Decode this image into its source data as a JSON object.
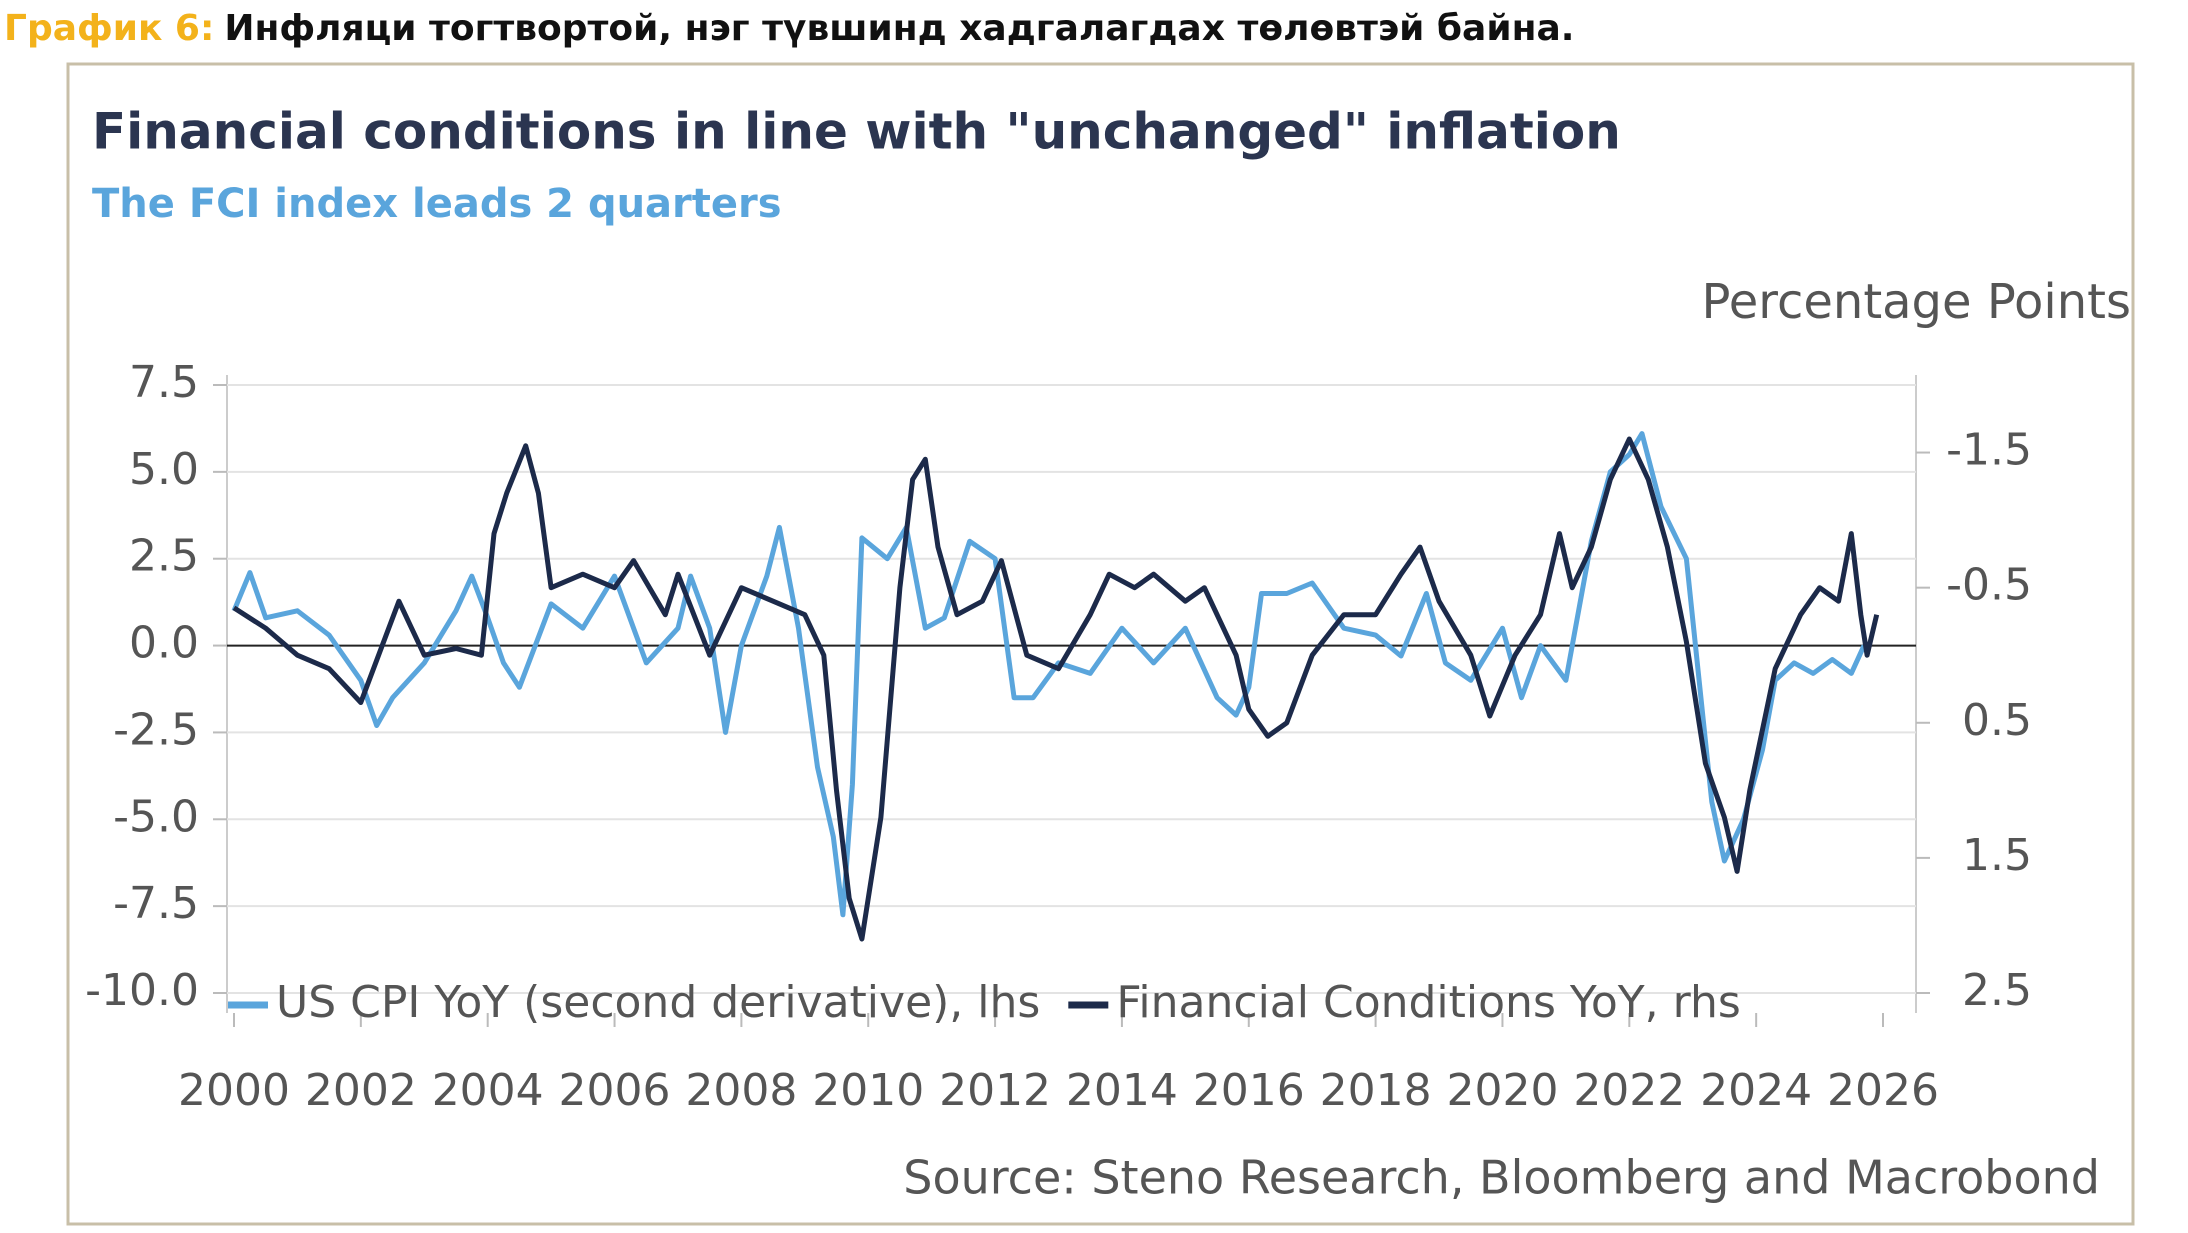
{
  "header": {
    "label": "График 6:",
    "text": "Инфляци тогтвортой, нэг түвшинд хадгалагдах төлөвтэй байна."
  },
  "chart_data": {
    "type": "line",
    "title": "Financial conditions in line with \"unchanged\" inflation",
    "subtitle": "The FCI index leads 2 quarters",
    "y2_label": "Percentage Points",
    "source": "Source: Steno Research, Bloomberg and Macrobond",
    "xlim": [
      2000,
      2026
    ],
    "xticks": [
      2000,
      2002,
      2004,
      2006,
      2008,
      2010,
      2012,
      2014,
      2016,
      2018,
      2020,
      2022,
      2024,
      2026
    ],
    "ylim": [
      -10,
      7.5
    ],
    "yticks": [
      7.5,
      {
        "value": 5,
        "label": "5.0"
      },
      2.5,
      {
        "value": 0,
        "label": "0.0"
      },
      -2.5,
      {
        "value": -5,
        "label": "-5.0"
      },
      -7.5,
      {
        "value": -10,
        "label": "-10.0"
      }
    ],
    "y2lim": [
      -2.0,
      2.5
    ],
    "y2_inverted": true,
    "y2ticks": [
      -1.5,
      -0.5,
      0.5,
      1.5,
      2.5
    ],
    "grid": true,
    "legend": "bottom-left",
    "series": [
      {
        "name": "US CPI YoY (second derivative), lhs",
        "color": "#5aa5dc",
        "x": [
          2000,
          2000.25,
          2000.5,
          2001,
          2001.5,
          2002,
          2002.25,
          2002.5,
          2003,
          2003.5,
          2003.75,
          2004,
          2004.25,
          2004.5,
          2005,
          2005.5,
          2006,
          2006.5,
          2007,
          2007.2,
          2007.5,
          2007.75,
          2008,
          2008.4,
          2008.6,
          2008.9,
          2009.2,
          2009.45,
          2009.6,
          2009.75,
          2009.9,
          2010.3,
          2010.6,
          2010.9,
          2011.2,
          2011.6,
          2012,
          2012.3,
          2012.6,
          2013,
          2013.5,
          2014,
          2014.5,
          2015,
          2015.5,
          2015.8,
          2016,
          2016.2,
          2016.6,
          2017,
          2017.5,
          2018,
          2018.4,
          2018.8,
          2019.1,
          2019.5,
          2020,
          2020.3,
          2020.6,
          2021,
          2021.4,
          2021.7,
          2022,
          2022.2,
          2022.5,
          2022.9,
          2023.1,
          2023.3,
          2023.5,
          2023.8,
          2024.1,
          2024.3,
          2024.6,
          2024.9,
          2025.2,
          2025.5,
          2025.7
        ],
        "values": [
          1.0,
          2.1,
          0.8,
          1.0,
          0.3,
          -1.0,
          -2.3,
          -1.5,
          -0.5,
          1.0,
          2.0,
          0.8,
          -0.5,
          -1.2,
          1.2,
          0.5,
          2.0,
          -0.5,
          0.5,
          2.0,
          0.5,
          -2.5,
          0.0,
          2.0,
          3.4,
          0.5,
          -3.5,
          -5.5,
          -7.75,
          -4.0,
          3.1,
          2.5,
          3.4,
          0.5,
          0.8,
          3.0,
          2.5,
          -1.5,
          -1.5,
          -0.5,
          -0.8,
          0.5,
          -0.5,
          0.5,
          -1.5,
          -2.0,
          -1.2,
          1.5,
          1.5,
          1.8,
          0.5,
          0.3,
          -0.3,
          1.5,
          -0.5,
          -1.0,
          0.5,
          -1.5,
          0.0,
          -1.0,
          3.0,
          5.0,
          5.5,
          6.1,
          4.0,
          2.5,
          -1.0,
          -4.5,
          -6.2,
          -5.0,
          -3.0,
          -1.0,
          -0.5,
          -0.8,
          -0.4,
          -0.8,
          0.0
        ]
      },
      {
        "name": "Financial Conditions YoY, rhs",
        "color": "#1c2a4a",
        "axis": "y2",
        "x": [
          2000,
          2000.5,
          2001,
          2001.5,
          2002,
          2002.6,
          2003,
          2003.5,
          2003.9,
          2004.1,
          2004.3,
          2004.6,
          2004.8,
          2005,
          2005.5,
          2006,
          2006.3,
          2006.8,
          2007,
          2007.5,
          2008,
          2008.5,
          2009,
          2009.3,
          2009.5,
          2009.7,
          2009.9,
          2010.2,
          2010.5,
          2010.7,
          2010.9,
          2011.1,
          2011.4,
          2011.8,
          2012.1,
          2012.5,
          2013,
          2013.5,
          2013.8,
          2014.2,
          2014.5,
          2015,
          2015.3,
          2015.8,
          2016,
          2016.3,
          2016.6,
          2017,
          2017.5,
          2018,
          2018.4,
          2018.7,
          2019,
          2019.5,
          2019.8,
          2020.2,
          2020.6,
          2020.9,
          2021.1,
          2021.4,
          2021.7,
          2022,
          2022.3,
          2022.6,
          2022.9,
          2023.2,
          2023.5,
          2023.7,
          2023.9,
          2024.3,
          2024.7,
          2025,
          2025.3,
          2025.5,
          2025.65,
          2025.75,
          2025.9
        ],
        "values": [
          -0.35,
          -0.2,
          0.0,
          0.1,
          0.35,
          -0.4,
          0.0,
          -0.05,
          0.0,
          -0.9,
          -1.2,
          -1.55,
          -1.2,
          -0.5,
          -0.6,
          -0.5,
          -0.7,
          -0.3,
          -0.6,
          0.0,
          -0.5,
          -0.4,
          -0.3,
          0.0,
          1.0,
          1.8,
          2.1,
          1.2,
          -0.5,
          -1.3,
          -1.45,
          -0.8,
          -0.3,
          -0.4,
          -0.7,
          0.0,
          0.1,
          -0.3,
          -0.6,
          -0.5,
          -0.6,
          -0.4,
          -0.5,
          0.0,
          0.4,
          0.6,
          0.5,
          0.0,
          -0.3,
          -0.3,
          -0.6,
          -0.8,
          -0.4,
          0.0,
          0.45,
          0.0,
          -0.3,
          -0.9,
          -0.5,
          -0.8,
          -1.3,
          -1.6,
          -1.3,
          -0.8,
          -0.1,
          0.8,
          1.2,
          1.6,
          1.0,
          0.1,
          -0.3,
          -0.5,
          -0.4,
          -0.9,
          -0.3,
          0.0,
          -0.3
        ]
      }
    ]
  }
}
